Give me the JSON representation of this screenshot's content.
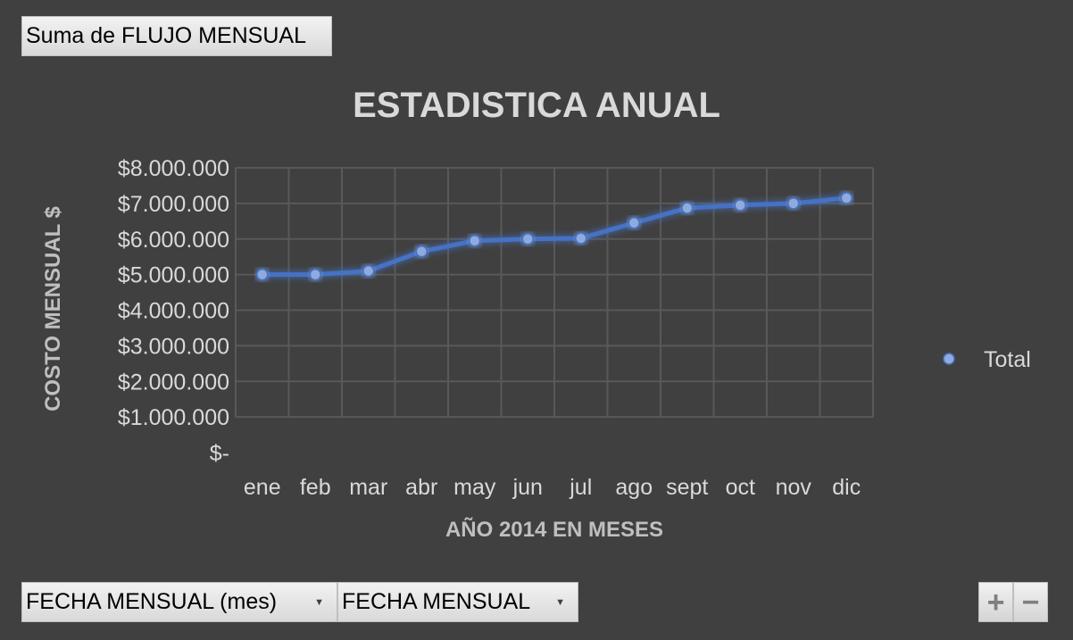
{
  "pivot": {
    "values_field": "Suma de FLUJO MENSUAL",
    "axis_fields": [
      "FECHA MENSUAL (mes)",
      "FECHA MENSUAL"
    ],
    "zoom_in": "+",
    "zoom_out": "−"
  },
  "colors": {
    "background": "#404040",
    "line": "#4472c4",
    "marker": "#8faadc",
    "grid": "#595959",
    "text": "#d9d9d9"
  },
  "chart_data": {
    "type": "line",
    "title": "ESTADISTICA ANUAL",
    "xlabel": "AÑO 2014 EN MESES",
    "ylabel": "COSTO MENSUAL $",
    "categories": [
      "ene",
      "feb",
      "mar",
      "abr",
      "may",
      "jun",
      "jul",
      "ago",
      "sept",
      "oct",
      "nov",
      "dic"
    ],
    "ylim": [
      0,
      8000000
    ],
    "yticks": [
      "$-",
      "$1.000.000",
      "$2.000.000",
      "$3.000.000",
      "$4.000.000",
      "$5.000.000",
      "$6.000.000",
      "$7.000.000",
      "$8.000.000"
    ],
    "series": [
      {
        "name": "Total",
        "values": [
          5000000,
          5000000,
          5100000,
          5650000,
          5950000,
          6000000,
          6020000,
          6450000,
          6870000,
          6950000,
          7000000,
          7150000
        ]
      }
    ],
    "grid": true,
    "legend_position": "right"
  }
}
